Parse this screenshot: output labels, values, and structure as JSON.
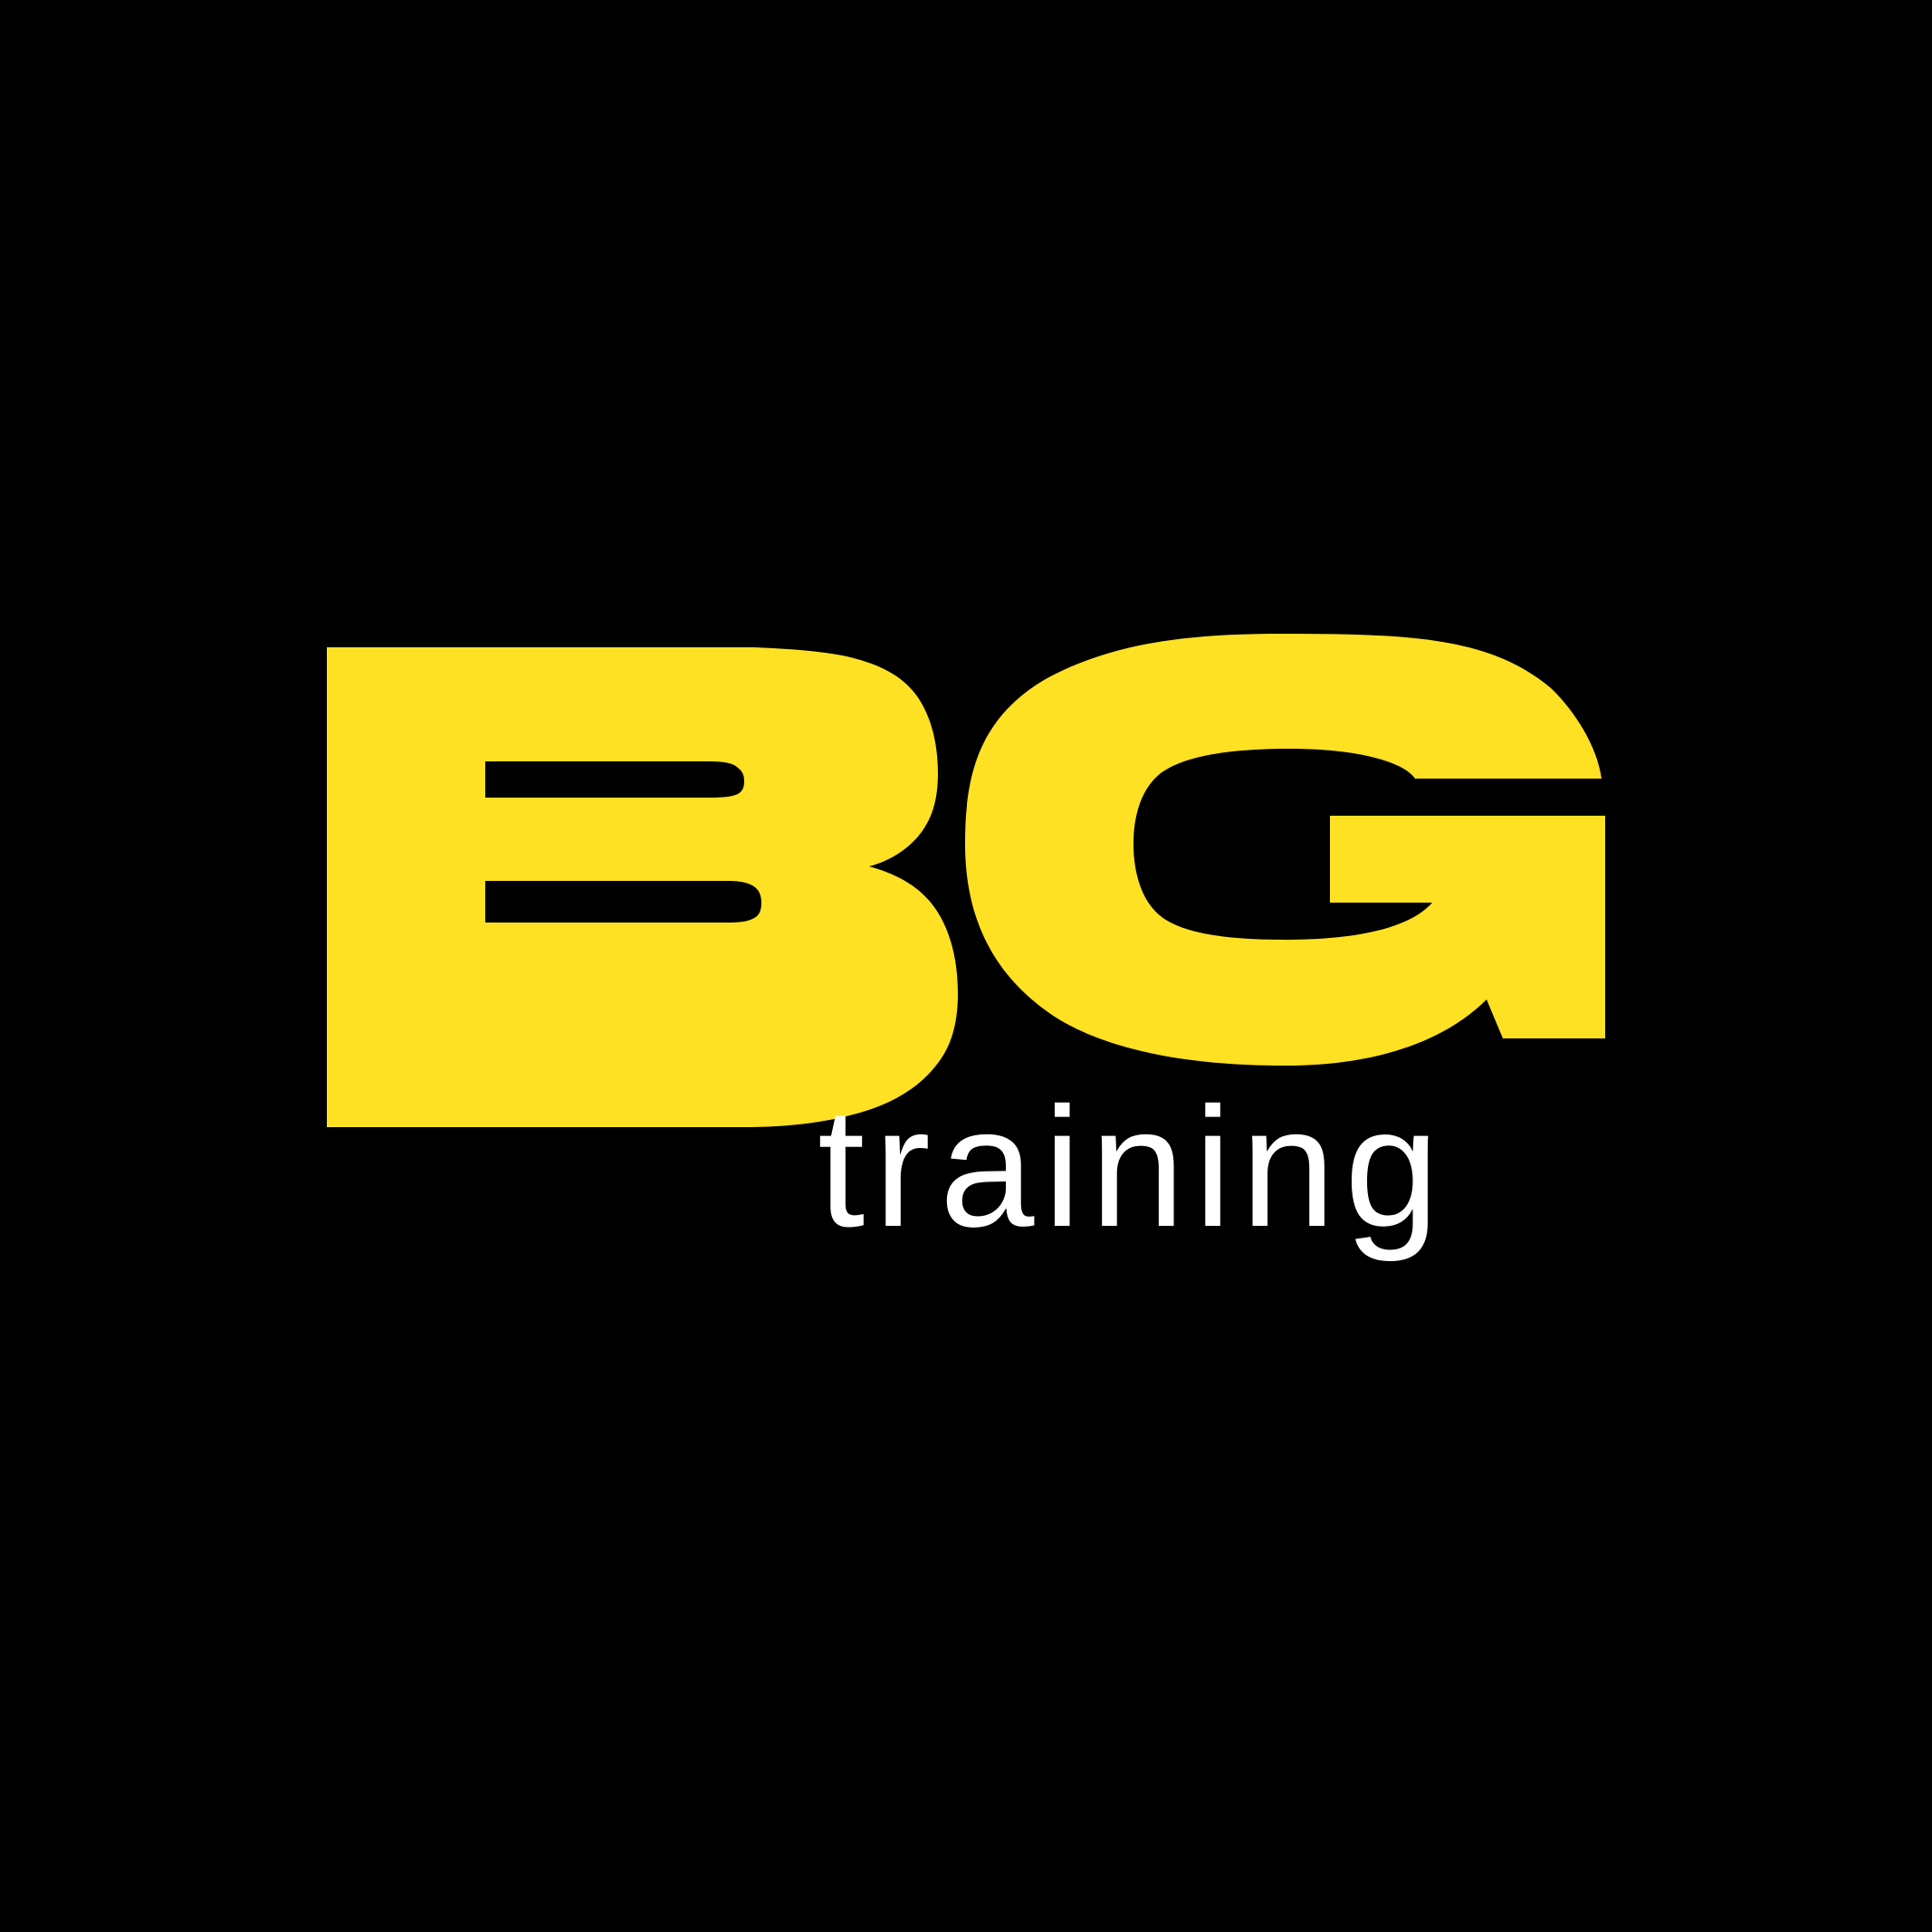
{
  "logo": {
    "primary_text": "BG",
    "sub_text": "training",
    "colors": {
      "background": "#000000",
      "primary": "#FFE124",
      "secondary": "#FFFFFF"
    }
  }
}
